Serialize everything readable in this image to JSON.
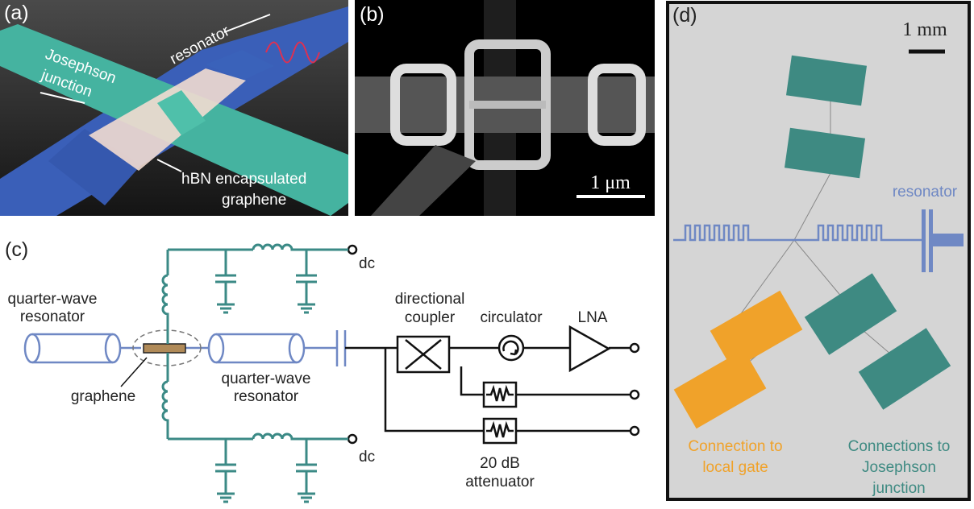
{
  "panel_a": {
    "label": "(a)",
    "resonator": "resonator",
    "junction": [
      "Josephson",
      "junction"
    ],
    "graphene": [
      "hBN encapsulated",
      "graphene"
    ]
  },
  "panel_b": {
    "label": "(b)",
    "scale_bar": "1 μm"
  },
  "panel_c": {
    "label": "(c)",
    "dc_top": "dc",
    "dc_bottom": "dc",
    "left_resonator": [
      "quarter-wave",
      "resonator"
    ],
    "graphene": "graphene",
    "right_resonator": [
      "quarter-wave",
      "resonator"
    ],
    "coupler": [
      "directional",
      "coupler"
    ],
    "circulator": "circulator",
    "amplifier": "LNA",
    "attenuator": [
      "20 dB",
      "attenuator"
    ]
  },
  "panel_d": {
    "label": "(d)",
    "scale_bar": "1 mm",
    "resonator": "resonator",
    "gate": [
      "Connection to",
      "local gate"
    ],
    "junction": [
      "Connections to",
      "Josephson",
      "junction"
    ]
  }
}
